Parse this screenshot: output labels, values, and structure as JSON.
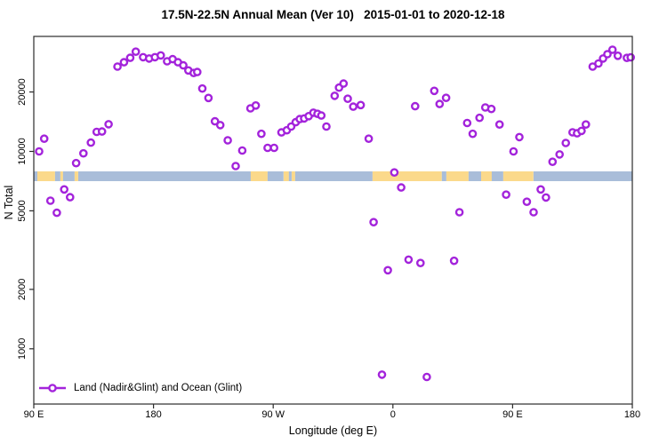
{
  "title": "17.5N-22.5N Annual Mean (Ver 10)   2015-01-01 to 2020-12-18",
  "axes": {
    "x": {
      "label": "Longitude (deg E)"
    },
    "y": {
      "label": "N Total"
    }
  },
  "legend": {
    "label": "Land (Nadir&Glint) and Ocean (Glint)",
    "symbol": "open-circle-on-line"
  },
  "colors": {
    "point": "#A323DB",
    "ocean": "#A9BDD9",
    "land": "#FBD98B",
    "axis": "#2b2b2b",
    "text": "#000000",
    "background": "#ffffff"
  },
  "chart_data": {
    "type": "scatter",
    "title": "17.5N-22.5N Annual Mean (Ver 10)   2015-01-01 to 2020-12-18",
    "xlabel": "Longitude (deg E)",
    "ylabel": "N Total",
    "x_axis": {
      "description": "longitude axis wrapping eastward from 90E: 90E-180-90W-0-90E-180, pos = degrees east of 90E",
      "span_deg": 450,
      "ticks": [
        {
          "pos": 0,
          "label": "90 E"
        },
        {
          "pos": 90,
          "label": "180"
        },
        {
          "pos": 180,
          "label": "90 W"
        },
        {
          "pos": 270,
          "label": "0"
        },
        {
          "pos": 360,
          "label": "90 E"
        },
        {
          "pos": 450,
          "label": "180"
        }
      ]
    },
    "y_axis": {
      "scale": "log10",
      "ylim": [
        525,
        38000
      ],
      "ticks": [
        {
          "value": 1000,
          "label": "1000"
        },
        {
          "value": 2000,
          "label": "2000"
        },
        {
          "value": 5000,
          "label": "5000"
        },
        {
          "value": 10000,
          "label": "10000"
        },
        {
          "value": 20000,
          "label": "20000"
        }
      ]
    },
    "map_band": {
      "description": "land/ocean strip map of latitude band 17.5N-22.5N drawn across plot",
      "value_top": 7925,
      "value_bottom": 7070,
      "segments": [
        {
          "from": 0,
          "to": 2.7,
          "type": "ocean"
        },
        {
          "from": 2.7,
          "to": 16,
          "type": "land"
        },
        {
          "from": 16,
          "to": 20,
          "type": "ocean"
        },
        {
          "from": 20,
          "to": 22,
          "type": "land"
        },
        {
          "from": 22,
          "to": 30.7,
          "type": "ocean"
        },
        {
          "from": 30.7,
          "to": 33.4,
          "type": "land"
        },
        {
          "from": 33.4,
          "to": 163.1,
          "type": "ocean"
        },
        {
          "from": 163.1,
          "to": 175.8,
          "type": "land"
        },
        {
          "from": 175.8,
          "to": 187.8,
          "type": "ocean"
        },
        {
          "from": 187.8,
          "to": 191.8,
          "type": "land"
        },
        {
          "from": 191.8,
          "to": 193.9,
          "type": "ocean"
        },
        {
          "from": 193.9,
          "to": 196.5,
          "type": "land"
        },
        {
          "from": 196.5,
          "to": 254.7,
          "type": "ocean"
        },
        {
          "from": 254.7,
          "to": 306.8,
          "type": "land"
        },
        {
          "from": 306.8,
          "to": 310.2,
          "type": "ocean"
        },
        {
          "from": 310.2,
          "to": 326.9,
          "type": "land"
        },
        {
          "from": 326.9,
          "to": 336.3,
          "type": "ocean"
        },
        {
          "from": 336.3,
          "to": 344.3,
          "type": "land"
        },
        {
          "from": 344.3,
          "to": 353,
          "type": "ocean"
        },
        {
          "from": 353,
          "to": 375.7,
          "type": "land"
        },
        {
          "from": 375.7,
          "to": 450,
          "type": "ocean"
        }
      ]
    },
    "points": [
      [
        4,
        10000
      ],
      [
        7.8,
        11600
      ],
      [
        12.5,
        5630
      ],
      [
        17.3,
        4890
      ],
      [
        22.9,
        6420
      ],
      [
        27.3,
        5860
      ],
      [
        31.8,
        8720
      ],
      [
        37.3,
        9770
      ],
      [
        42.9,
        11080
      ],
      [
        47.3,
        12560
      ],
      [
        51.3,
        12610
      ],
      [
        56.2,
        13730
      ],
      [
        62.9,
        26900
      ],
      [
        67.8,
        28280
      ],
      [
        72.5,
        29800
      ],
      [
        76.7,
        32000
      ],
      [
        82.2,
        30000
      ],
      [
        86.7,
        29560
      ],
      [
        91.1,
        30000
      ],
      [
        95.5,
        30630
      ],
      [
        100.2,
        28620
      ],
      [
        104.4,
        29330
      ],
      [
        108.4,
        28300
      ],
      [
        112.4,
        27280
      ],
      [
        116.2,
        25730
      ],
      [
        120.2,
        24950
      ],
      [
        122.9,
        25250
      ],
      [
        126.7,
        20830
      ],
      [
        131.3,
        18660
      ],
      [
        136.2,
        14200
      ],
      [
        140.2,
        13590
      ],
      [
        145.8,
        11380
      ],
      [
        151.8,
        8430
      ],
      [
        156.7,
        10100
      ],
      [
        162.9,
        16520
      ],
      [
        166.9,
        17090
      ],
      [
        171.1,
        12270
      ],
      [
        175.8,
        10420
      ],
      [
        180.7,
        10420
      ],
      [
        186.2,
        12480
      ],
      [
        190.2,
        12790
      ],
      [
        193.5,
        13370
      ],
      [
        196.9,
        14060
      ],
      [
        200,
        14580
      ],
      [
        203.3,
        14680
      ],
      [
        206.7,
        15090
      ],
      [
        210.2,
        15710
      ],
      [
        213.3,
        15500
      ],
      [
        216.2,
        15200
      ],
      [
        220,
        13370
      ],
      [
        226.2,
        19120
      ],
      [
        229.5,
        21040
      ],
      [
        232.9,
        22060
      ],
      [
        236,
        18480
      ],
      [
        240.2,
        16860
      ],
      [
        245.8,
        17170
      ],
      [
        251.8,
        11600
      ],
      [
        255.5,
        4380
      ],
      [
        261.8,
        740
      ],
      [
        266.2,
        2500
      ],
      [
        271.1,
        7820
      ],
      [
        276.2,
        6570
      ],
      [
        281.8,
        2830
      ],
      [
        286.7,
        16950
      ],
      [
        290.7,
        2720
      ],
      [
        295.5,
        720
      ],
      [
        301.1,
        20270
      ],
      [
        305.1,
        17390
      ],
      [
        310,
        18670
      ],
      [
        316,
        2790
      ],
      [
        320,
        4920
      ],
      [
        325.8,
        13930
      ],
      [
        330,
        12270
      ],
      [
        335.1,
        14800
      ],
      [
        339.5,
        16690
      ],
      [
        344,
        16400
      ],
      [
        350.2,
        13680
      ],
      [
        355.1,
        6040
      ],
      [
        360.7,
        10000
      ],
      [
        365.1,
        11820
      ],
      [
        370.7,
        5560
      ],
      [
        375.8,
        4920
      ],
      [
        381.1,
        6420
      ],
      [
        385.1,
        5840
      ],
      [
        390,
        8860
      ],
      [
        395.3,
        9650
      ],
      [
        400,
        11030
      ],
      [
        405.1,
        12500
      ],
      [
        408.5,
        12350
      ],
      [
        411.8,
        12700
      ],
      [
        415.1,
        13680
      ],
      [
        420.2,
        26900
      ],
      [
        424.5,
        27880
      ],
      [
        428,
        29560
      ],
      [
        431.3,
        31100
      ],
      [
        435.1,
        32730
      ],
      [
        439.1,
        30500
      ],
      [
        445.9,
        29760
      ],
      [
        448.8,
        29960
      ]
    ]
  }
}
